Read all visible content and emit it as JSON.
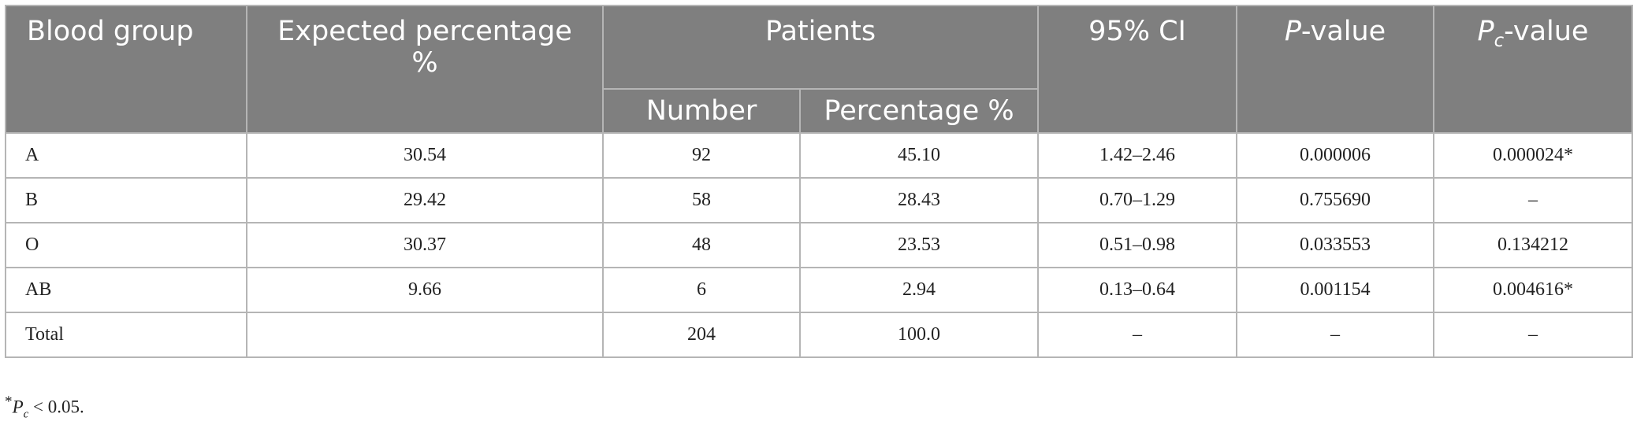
{
  "table": {
    "headers": {
      "blood_group": "Blood group",
      "expected_percentage": "Expected percentage %",
      "patients": "Patients",
      "ci": "95% CI",
      "p_value_italic": "P",
      "p_value_rest": "-value",
      "pc_value_italic": "P",
      "pc_value_sub": "c",
      "pc_value_rest": "-value",
      "number": "Number",
      "percentage": "Percentage %"
    },
    "rows": [
      {
        "group": "A",
        "expected": "30.54",
        "number": "92",
        "percentage": "45.10",
        "ci": "1.42–2.46",
        "p": "0.000006",
        "pc": "0.000024*"
      },
      {
        "group": "B",
        "expected": "29.42",
        "number": "58",
        "percentage": "28.43",
        "ci": "0.70–1.29",
        "p": "0.755690",
        "pc": "–"
      },
      {
        "group": "O",
        "expected": "30.37",
        "number": "48",
        "percentage": "23.53",
        "ci": "0.51–0.98",
        "p": "0.033553",
        "pc": "0.134212"
      },
      {
        "group": "AB",
        "expected": "9.66",
        "number": "6",
        "percentage": "2.94",
        "ci": "0.13–0.64",
        "p": "0.001154",
        "pc": "0.004616*"
      },
      {
        "group": "Total",
        "expected": "",
        "number": "204",
        "percentage": "100.0",
        "ci": "–",
        "p": "–",
        "pc": "–"
      }
    ]
  },
  "footnote": {
    "star": "*",
    "italic": "P",
    "sub": "c",
    "rest": " < 0.05."
  }
}
